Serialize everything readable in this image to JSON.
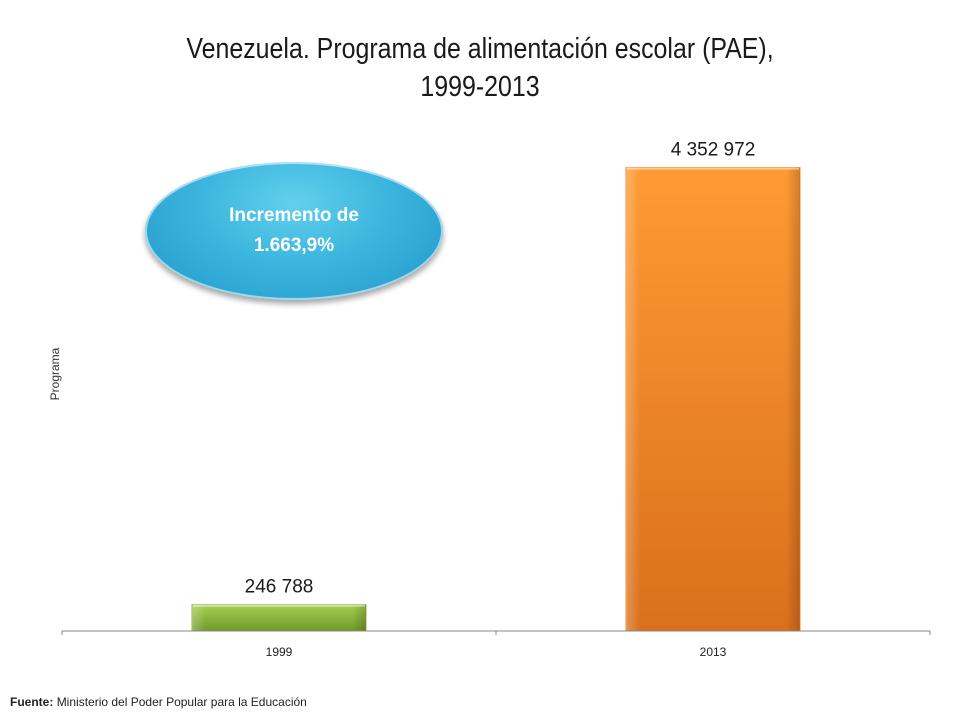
{
  "chart_data": {
    "type": "bar",
    "title_line1": "Venezuela. Programa de alimentación escolar (PAE),",
    "title_line2": "1999-2013",
    "ylabel": "Programa",
    "xlabel": "",
    "categories": [
      "1999",
      "2013"
    ],
    "values": [
      246788,
      4352972
    ],
    "data_labels": [
      "246 788",
      "4 352 972"
    ],
    "ylim": [
      0,
      4800000
    ],
    "grid": false,
    "bar_colors": [
      "#8bb63a",
      "#f08a25"
    ],
    "annotation": {
      "line1": "Incremento de",
      "line2": "1.663,9%",
      "color": "#3bb5de"
    }
  },
  "source": {
    "label": "Fuente:",
    "text": "Ministerio del Poder Popular para la Educación"
  }
}
